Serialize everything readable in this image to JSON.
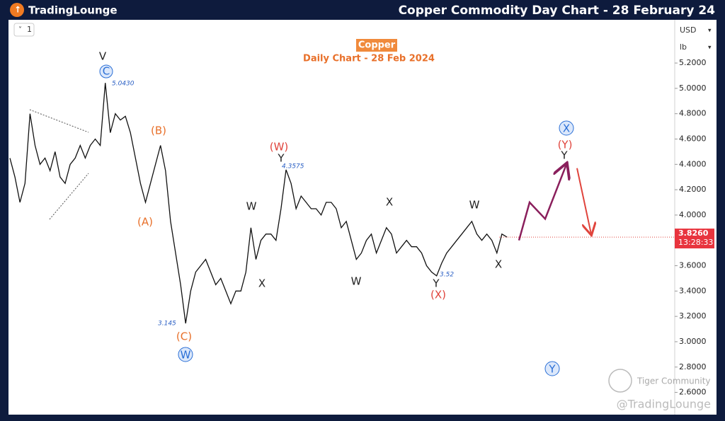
{
  "header": {
    "logo": "TradingLounge",
    "title": "Copper Commodity Day Chart - 28 February 24"
  },
  "toolbar": {
    "interval": "1",
    "currency": "USD",
    "unit": "lb"
  },
  "chart_data": {
    "type": "line",
    "title": "Copper",
    "subtitle": "Daily Chart - 28 Feb 2024",
    "color": "#111111",
    "values": [
      4.45,
      4.3,
      4.1,
      4.25,
      4.8,
      4.55,
      4.4,
      4.45,
      4.35,
      4.5,
      4.3,
      4.25,
      4.4,
      4.45,
      4.55,
      4.45,
      4.55,
      4.6,
      4.55,
      5.043,
      4.65,
      4.8,
      4.75,
      4.78,
      4.65,
      4.45,
      4.25,
      4.1,
      4.25,
      4.4,
      4.55,
      4.35,
      3.95,
      3.7,
      3.45,
      3.145,
      3.4,
      3.55,
      3.6,
      3.65,
      3.55,
      3.45,
      3.5,
      3.4,
      3.3,
      3.4,
      3.4,
      3.55,
      3.9,
      3.65,
      3.8,
      3.85,
      3.85,
      3.8,
      4.05,
      4.3575,
      4.25,
      4.05,
      4.15,
      4.1,
      4.05,
      4.05,
      4.0,
      4.1,
      4.1,
      4.05,
      3.9,
      3.95,
      3.8,
      3.65,
      3.7,
      3.8,
      3.85,
      3.7,
      3.8,
      3.9,
      3.85,
      3.7,
      3.75,
      3.8,
      3.75,
      3.75,
      3.7,
      3.6,
      3.55,
      3.52,
      3.62,
      3.7,
      3.75,
      3.8,
      3.85,
      3.9,
      3.95,
      3.85,
      3.8,
      3.85,
      3.8,
      3.7,
      3.85,
      3.826
    ],
    "projection": {
      "color": "#8a1f5c",
      "values": [
        3.8,
        4.1,
        3.97,
        4.4
      ]
    },
    "forecast": {
      "color": "#e0443c",
      "values": [
        4.37,
        3.85
      ]
    },
    "ylim": [
      2.43,
      5.53
    ],
    "yticks": [
      {
        "value": 5.2,
        "label": "5.2000"
      },
      {
        "value": 5.0,
        "label": "5.0000"
      },
      {
        "value": 4.8,
        "label": "4.8000"
      },
      {
        "value": 4.6,
        "label": "4.6000"
      },
      {
        "value": 4.4,
        "label": "4.4000"
      },
      {
        "value": 4.2,
        "label": "4.2000"
      },
      {
        "value": 4.0,
        "label": "4.0000"
      },
      {
        "value": 3.8,
        "label": "3.8000"
      },
      {
        "value": 3.6,
        "label": "3.6000"
      },
      {
        "value": 3.4,
        "label": "3.4000"
      },
      {
        "value": 3.2,
        "label": "3.2000"
      },
      {
        "value": 3.0,
        "label": "3.0000"
      },
      {
        "value": 2.8,
        "label": "2.8000"
      },
      {
        "value": 2.6,
        "label": "2.6000"
      }
    ],
    "last_price": {
      "value": 3.826,
      "label": "3.8260"
    },
    "countdown": "13:28:33"
  },
  "annotations": [
    "V",
    "C",
    "5.0430",
    "(B)",
    "(A)",
    "3.145",
    "(C)",
    "W",
    "(W)",
    "Y",
    "4.3575",
    "W",
    "X",
    "X",
    "W",
    "W",
    "3.52",
    "Y",
    "(X)",
    "X",
    "X",
    "(Y)",
    "Y",
    "Y"
  ],
  "watermark": {
    "community": "Tiger Community",
    "handle": "@TradingLounge"
  }
}
